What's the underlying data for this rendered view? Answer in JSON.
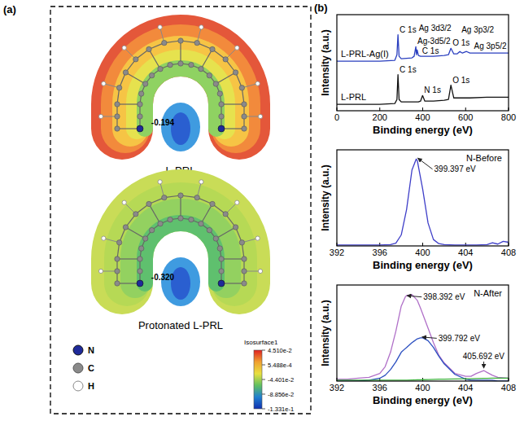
{
  "panel_a": {
    "label": "(a)",
    "molecules": [
      {
        "name": "L-PRL",
        "charge_label": "-0.194"
      },
      {
        "name": "Protonated L-PRL",
        "charge_label": "-0.320"
      }
    ],
    "atom_legend": [
      "N",
      "C",
      "H"
    ],
    "color_bar": {
      "title": "Isosurface1",
      "range": [
        -0.1331,
        0.0451
      ],
      "ticks": [
        {
          "value": 0.0451,
          "label": "4.510e-2"
        },
        {
          "value": 0.0005488,
          "label": "5.488e-4"
        },
        {
          "value": -0.04401,
          "label": "-4.401e-2"
        },
        {
          "value": -0.08856,
          "label": "-8.856e-2"
        },
        {
          "value": -0.1331,
          "label": "-1.331e-1"
        }
      ]
    }
  },
  "panel_b": {
    "label": "(b)"
  },
  "chart_data": [
    {
      "type": "line",
      "x_label": "Binding energy (eV)",
      "y_label": "Intensity (a.u.)",
      "x": [
        0,
        100,
        200,
        270,
        280,
        284.8,
        290,
        300,
        350,
        360,
        368,
        371,
        374,
        380,
        390,
        399.4,
        410,
        450,
        500,
        520,
        531.5,
        545,
        560,
        573,
        585,
        604,
        620,
        700,
        800
      ],
      "xlim": [
        0,
        800
      ],
      "xticks": [
        0,
        200,
        400,
        600,
        800
      ],
      "ylim": [
        0,
        120
      ],
      "tick_labels": "x",
      "series": [
        {
          "name": "L-PRL-Ag(I)",
          "color": "#2a3fbf",
          "values": [
            62,
            62,
            62,
            63,
            70,
            95,
            68,
            65,
            66,
            68,
            80,
            70,
            76,
            69,
            68,
            68,
            68,
            68,
            69,
            70,
            78,
            71,
            71,
            74,
            72,
            74,
            72,
            72,
            72
          ],
          "annotations": [
            {
              "text": "C 1s",
              "x": 284.8
            },
            {
              "text": "Ag-3d5/2",
              "x": 368
            },
            {
              "text": "Ag 3d3/2",
              "x": 374
            },
            {
              "text": "C 1s",
              "x": 390
            },
            {
              "text": "O 1s",
              "x": 531.5
            },
            {
              "text": "Ag 3p3/2",
              "x": 573
            },
            {
              "text": "Ag 3p5/2",
              "x": 604
            }
          ]
        },
        {
          "name": "L-PRL",
          "color": "#111111",
          "values": [
            8,
            8,
            8,
            9,
            14,
            45,
            14,
            11,
            11,
            11,
            11,
            11,
            11,
            11,
            12,
            19,
            12,
            12,
            13,
            14,
            32,
            16,
            16,
            16,
            16,
            16,
            16,
            17,
            17
          ],
          "annotations": [
            {
              "text": "C 1s",
              "x": 284.8
            },
            {
              "text": "N 1s",
              "x": 399.4
            },
            {
              "text": "O 1s",
              "x": 531.5
            }
          ]
        }
      ]
    },
    {
      "type": "line",
      "title": "N-Before",
      "x_label": "Binding energy (eV)",
      "y_label": "Intensity (a.u.)",
      "x": [
        392,
        392.5,
        393,
        393.5,
        394,
        394.5,
        395,
        395.5,
        396,
        396.5,
        397,
        397.5,
        398,
        398.5,
        399,
        399.397,
        399.5,
        400,
        400.5,
        401,
        401.5,
        402,
        402.5,
        403,
        403.5,
        404,
        404.5,
        405,
        405.5,
        406,
        406.5,
        407,
        407.5,
        408
      ],
      "xlim": [
        392,
        408
      ],
      "xticks": [
        392,
        396,
        400,
        404,
        408
      ],
      "ylim": [
        0,
        105
      ],
      "tick_labels": "x",
      "series": [
        {
          "color": "#3e3ec8",
          "values": [
            1,
            1,
            1,
            1,
            1,
            1,
            1,
            1,
            1,
            1.2,
            1.5,
            3,
            12,
            40,
            83,
            95,
            93,
            62,
            25,
            7,
            2.5,
            1.5,
            1.2,
            1,
            1,
            1,
            1,
            1,
            1.2,
            1.5,
            3.5,
            2,
            5,
            4
          ],
          "annotations": [
            {
              "text": "399.397 eV",
              "x": 399.397
            }
          ]
        }
      ]
    },
    {
      "type": "line",
      "title": "N-After",
      "x_label": "Binding energy (eV)",
      "y_label": "Intensity (a.u.)",
      "x": [
        392,
        393,
        394,
        395,
        396,
        396.5,
        397,
        397.5,
        398,
        398.392,
        398.5,
        399,
        399.5,
        399.792,
        400,
        400.5,
        401,
        401.5,
        402,
        403,
        404,
        404.5,
        405,
        405.692,
        406,
        406.5,
        407,
        408
      ],
      "xlim": [
        392,
        408
      ],
      "xticks": [
        392,
        396,
        400,
        404,
        408
      ],
      "ylim": [
        0,
        100
      ],
      "tick_labels": "x",
      "series": [
        {
          "color": "#b070c8",
          "values": [
            2,
            2,
            3,
            4,
            8,
            15,
            30,
            52,
            78,
            88,
            89,
            90,
            84,
            76,
            70,
            55,
            40,
            27,
            19,
            8,
            5,
            5,
            8,
            11,
            9,
            6,
            4,
            3
          ],
          "annotations": [
            {
              "text": "398.392 eV",
              "x": 398.392
            },
            {
              "text": "405.692 eV",
              "x": 405.692
            }
          ]
        },
        {
          "color": "#2b4fc0",
          "values": [
            0,
            0,
            0,
            1,
            3,
            6,
            12,
            20,
            30,
            34,
            35,
            40,
            44,
            45,
            45,
            42,
            35,
            26,
            18,
            7,
            2,
            1,
            1,
            1,
            1,
            1,
            0,
            0
          ],
          "annotations": [
            {
              "text": "399.792 eV",
              "x": 399.792
            }
          ]
        },
        {
          "color": "#3bb03b",
          "values": [
            1,
            1,
            1,
            1,
            1,
            1,
            1,
            1,
            1,
            1,
            1,
            1.2,
            1.3,
            1.4,
            1.5,
            1.6,
            1.8,
            2,
            2,
            2.2,
            2.5,
            2.5,
            2.6,
            2.8,
            2.9,
            3,
            3,
            3
          ]
        }
      ]
    }
  ]
}
